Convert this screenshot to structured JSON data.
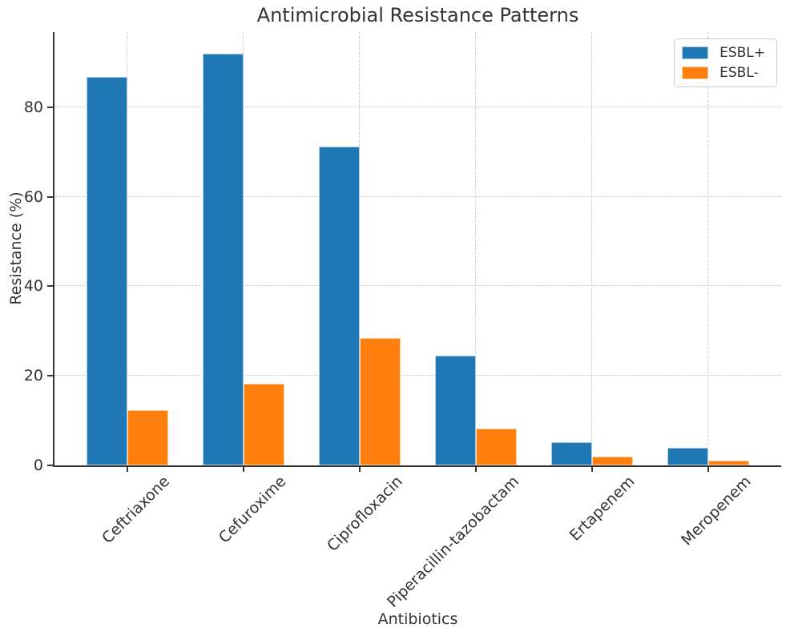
{
  "chart_data": {
    "type": "bar",
    "title": "Antimicrobial Resistance Patterns",
    "xlabel": "Antibiotics",
    "ylabel": "Resistance (%)",
    "categories": [
      "Ceftriaxone",
      "Cefuroxime",
      "Ciprofloxacin",
      "Piperacillin-tazobactam",
      "Ertapenem",
      "Meropenem"
    ],
    "series": [
      {
        "name": "ESBL+",
        "slug": "esbl-positive",
        "color": "#1f77b4",
        "values": [
          86.8,
          92.0,
          71.3,
          24.6,
          5.2,
          3.9
        ]
      },
      {
        "name": "ESBL-",
        "slug": "esbl-negative",
        "color": "#ff7f0e",
        "values": [
          12.4,
          18.2,
          28.5,
          8.2,
          2.0,
          1.1
        ]
      }
    ],
    "yticks": [
      0,
      20,
      40,
      60,
      80
    ],
    "ylim": [
      0,
      96.8
    ],
    "grid": true,
    "grid_style": "dashed",
    "xtick_rotation_deg": 45,
    "legend_position": "upper right"
  },
  "style": {
    "grid_color": "#cdcdcd",
    "axis_color": "#333333",
    "text_color": "#333333",
    "background": "#ffffff"
  }
}
